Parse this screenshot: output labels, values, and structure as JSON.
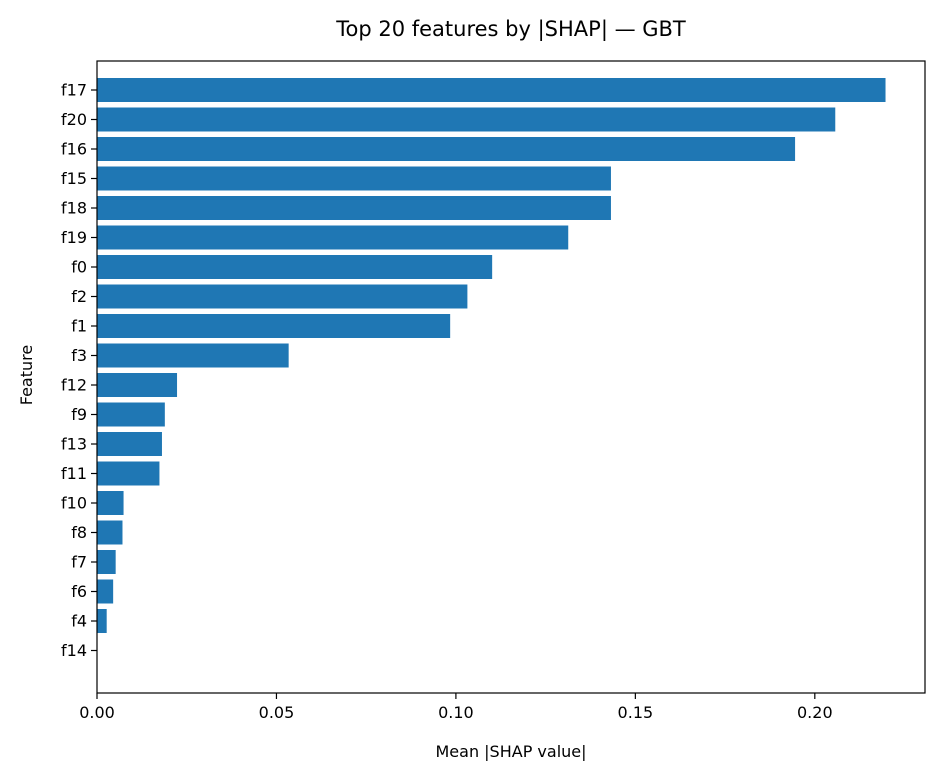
{
  "chart_data": {
    "type": "bar",
    "orientation": "horizontal",
    "title": "Top 20 features by |SHAP| — GBT",
    "xlabel": "Mean |SHAP value|",
    "ylabel": "Feature",
    "categories": [
      "f17",
      "f20",
      "f16",
      "f15",
      "f18",
      "f19",
      "f0",
      "f2",
      "f1",
      "f3",
      "f12",
      "f9",
      "f13",
      "f11",
      "f10",
      "f8",
      "f7",
      "f6",
      "f4",
      "f14"
    ],
    "values": [
      0.2197,
      0.2057,
      0.1945,
      0.1432,
      0.1432,
      0.1313,
      0.1101,
      0.1032,
      0.0984,
      0.0534,
      0.0223,
      0.0189,
      0.0181,
      0.0174,
      0.0074,
      0.0071,
      0.0052,
      0.0045,
      0.0027,
      0.0
    ],
    "xlim": [
      0.0,
      0.2307
    ],
    "xticks": [
      "0.00",
      "0.05",
      "0.10",
      "0.15",
      "0.20"
    ],
    "xtick_values": [
      0.0,
      0.05,
      0.1,
      0.15,
      0.2
    ],
    "bar_color": "#1f77b4",
    "grid": false,
    "legend": "none"
  }
}
